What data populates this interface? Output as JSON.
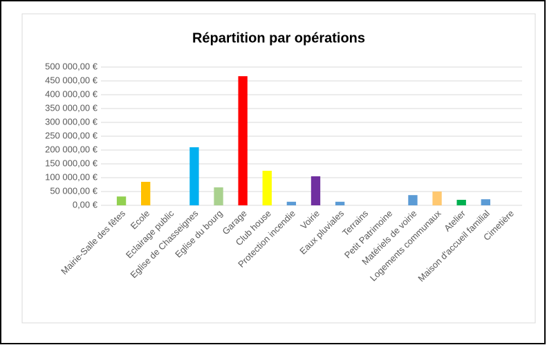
{
  "chart_data": {
    "type": "bar",
    "title": "Répartition par  opérations",
    "categories": [
      "Mairie-Salle des fêtes",
      "Ecole",
      "Eclairage public",
      "Eglise de Chasseignes",
      "Eglise du bourg",
      "Garage",
      "Club house",
      "Protection incendie",
      "Voirie",
      "Eaux pluviales",
      "Terrains",
      "Petit Patrimoine",
      "Matériels de voirie",
      "Logements communaux",
      "Atelier",
      "Maison d'accueil familial",
      "Cimetière"
    ],
    "values": [
      32000,
      85000,
      0,
      210000,
      65000,
      467000,
      125000,
      13000,
      105000,
      13000,
      0,
      0,
      37000,
      50000,
      20000,
      22000,
      0
    ],
    "colors": [
      "#92d050",
      "#ffc000",
      "#5b9bd5",
      "#00b0f0",
      "#a9d18e",
      "#ff0000",
      "#ffff00",
      "#5b9bd5",
      "#7030a0",
      "#5b9bd5",
      "#5b9bd5",
      "#5b9bd5",
      "#5b9bd5",
      "#ffc870",
      "#00b050",
      "#5b9bd5",
      "#5b9bd5"
    ],
    "ylim": [
      0,
      500000
    ],
    "yticks": [
      {
        "value": 0,
        "label": "0,00 €"
      },
      {
        "value": 50000,
        "label": "50 000,00 €"
      },
      {
        "value": 100000,
        "label": "100 000,00 €"
      },
      {
        "value": 150000,
        "label": "150 000,00 €"
      },
      {
        "value": 200000,
        "label": "200 000,00 €"
      },
      {
        "value": 250000,
        "label": "250 000,00 €"
      },
      {
        "value": 300000,
        "label": "300 000,00 €"
      },
      {
        "value": 350000,
        "label": "350 000,00 €"
      },
      {
        "value": 400000,
        "label": "400 000,00 €"
      },
      {
        "value": 450000,
        "label": "450 000,00 €"
      },
      {
        "value": 500000,
        "label": "500 000,00 €"
      }
    ],
    "grid": true
  }
}
